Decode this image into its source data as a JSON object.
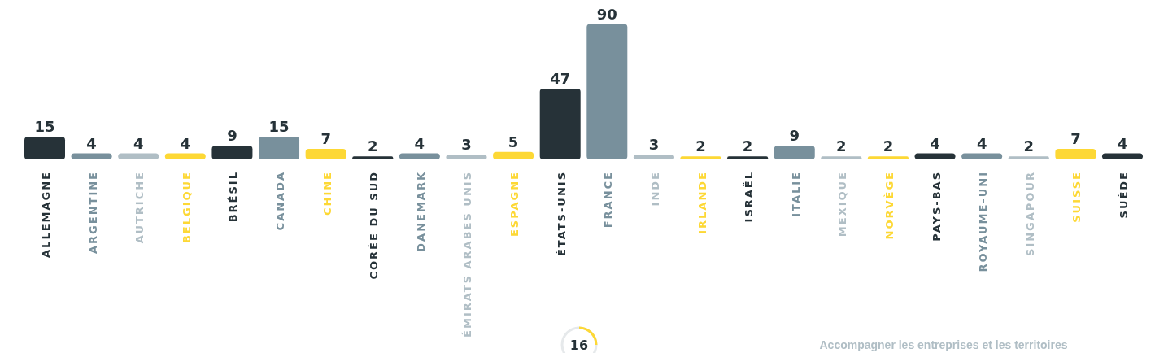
{
  "chart_data": {
    "type": "bar",
    "categories": [
      "ALLEMAGNE",
      "ARGENTINE",
      "AUTRICHE",
      "BELGIQUE",
      "BRÉSIL",
      "CANADA",
      "CHINE",
      "CORÉE DU SUD",
      "DANEMARK",
      "ÉMIRATS ARABES UNIS",
      "ESPAGNE",
      "ÉTATS-UNIS",
      "FRANCE",
      "INDE",
      "IRLANDE",
      "ISRAËL",
      "ITALIE",
      "MEXIQUE",
      "NORVÈGE",
      "PAYS-BAS",
      "ROYAUME-UNI",
      "SINGAPOUR",
      "SUISSE",
      "SUÈDE"
    ],
    "values": [
      15,
      4,
      4,
      4,
      9,
      15,
      7,
      2,
      4,
      3,
      5,
      47,
      90,
      3,
      2,
      2,
      9,
      2,
      2,
      4,
      4,
      2,
      7,
      4
    ],
    "colors": [
      "#263238",
      "#78909c",
      "#b0bec5",
      "#fdd835",
      "#263238",
      "#78909c",
      "#fdd835",
      "#263238",
      "#78909c",
      "#b0bec5",
      "#fdd835",
      "#263238",
      "#78909c",
      "#b0bec5",
      "#fdd835",
      "#263238",
      "#78909c",
      "#b0bec5",
      "#fdd835",
      "#263238",
      "#78909c",
      "#b0bec5",
      "#fdd835",
      "#263238"
    ],
    "data_labels": true,
    "annotations": [
      "16",
      "Accompagner les entreprises et les territoires"
    ]
  }
}
